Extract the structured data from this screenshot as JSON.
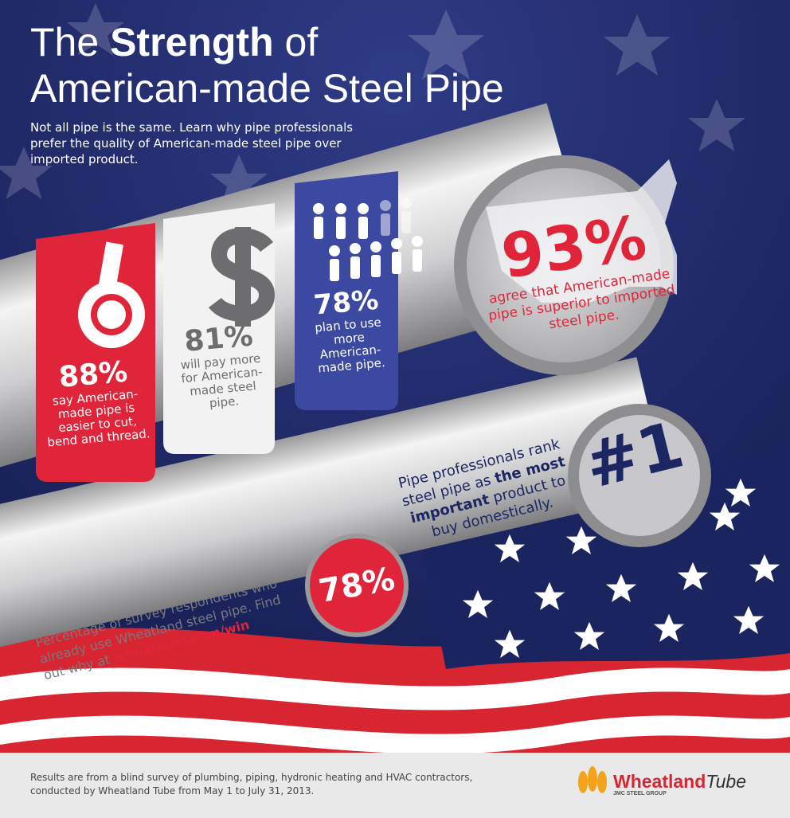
{
  "header": {
    "title_prefix": "The",
    "title_bold": "Strength",
    "title_suffix": "of",
    "title_line2": "American-made Steel Pipe",
    "subtitle": "Not all pipe is the same. Learn why pipe professionals prefer the quality of American-made steel pipe over imported product."
  },
  "stats": [
    {
      "percent": "88%",
      "text": "say American-made pipe is easier to cut, bend and thread."
    },
    {
      "percent": "81%",
      "text": "will pay more for American-made steel pipe."
    },
    {
      "percent": "78%",
      "text": "plan to use more American-made pipe."
    },
    {
      "percent": "93%",
      "text": "agree that American-made pipe is superior to imported steel pipe."
    }
  ],
  "rank": {
    "label": "#1",
    "text_before": "Pipe professionals rank steel pipe as",
    "emphasis": "the most important",
    "text_after": "product to buy domestically."
  },
  "usage": {
    "percent": "78%",
    "text": "Percentage of survey respondents who already use Wheatland steel pipe.",
    "cta": "Find out why at",
    "link": "wheatland.com/win"
  },
  "footer": {
    "note": "Results are from a blind survey of plumbing, piping, hydronic heating and HVAC contractors, conducted by Wheatland Tube from May 1 to July 31, 2013.",
    "logo_main": "Wheatland",
    "logo_sub": "Tube",
    "logo_group": "JMC STEEL GROUP"
  }
}
